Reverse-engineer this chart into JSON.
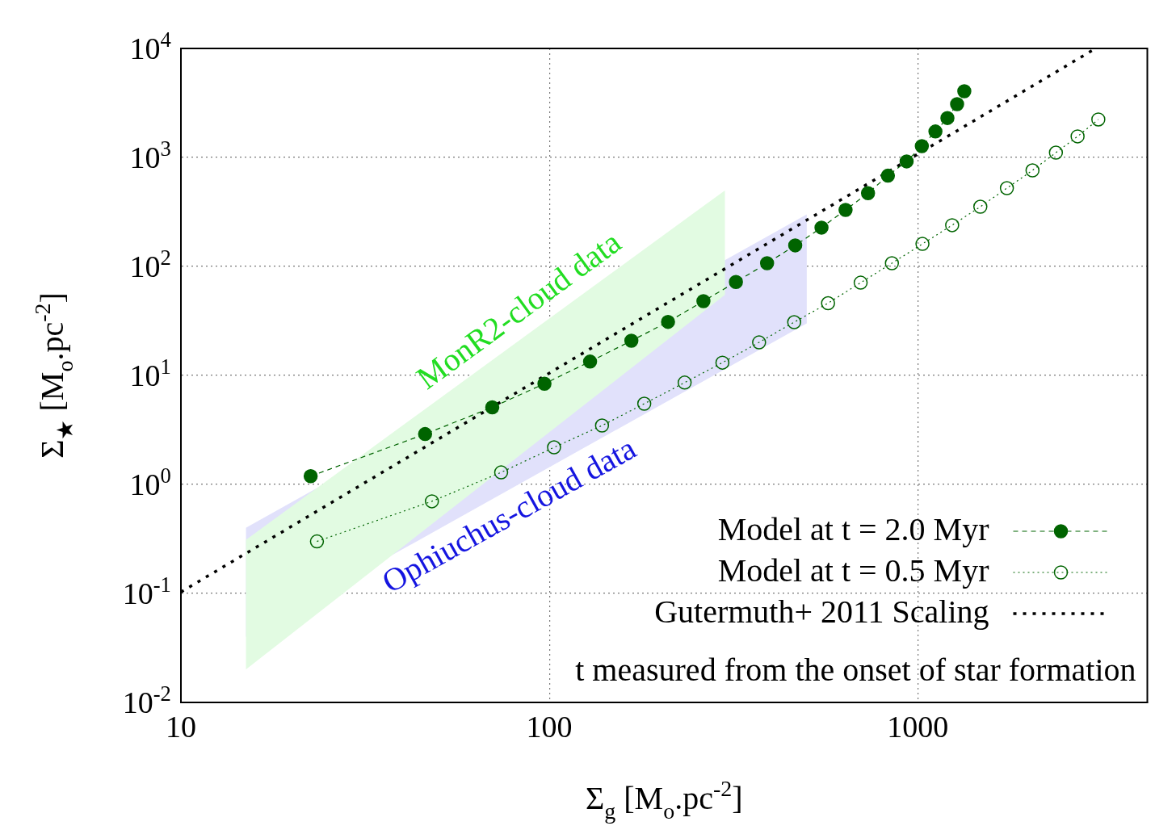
{
  "chart_data": {
    "type": "scatter",
    "xlabel": "Σ$_{g}$ [M$_{o}$.pc$^{-2}$]",
    "ylabel": "Σ$_{★}$ [M$_{o}$.pc$^{-2}$]",
    "log": "xy",
    "xlim": [
      10,
      4200
    ],
    "ylim": [
      0.01,
      10000
    ],
    "xticks": [
      10,
      100,
      1000
    ],
    "yticks": [
      {
        "value": 0.01,
        "label": "10$^{-2}$"
      },
      {
        "value": 0.1,
        "label": "10$^{-1}$"
      },
      {
        "value": 1,
        "label": "10$^{0}$"
      },
      {
        "value": 10,
        "label": "10$^{1}$"
      },
      {
        "value": 100,
        "label": "10$^{2}$"
      },
      {
        "value": 1000,
        "label": "10$^{3}$"
      },
      {
        "value": 10000,
        "label": "10$^{4}$"
      }
    ],
    "grid": true,
    "legend": "bottom right",
    "annotations": [
      "t measured from the onset of star formation"
    ],
    "series": [
      {
        "type": "line",
        "name": "MonR2-cloud data",
        "color": "#22dd22",
        "x": [
          15,
          300
        ],
        "values": [
          null,
          null
        ],
        "upper": [
          0.31,
          500
        ],
        "lower": [
          0.02,
          55
        ]
      },
      {
        "type": "line",
        "name": "Ophiuchus-cloud data",
        "color": "#1515e0",
        "x": [
          15,
          500
        ],
        "values": [
          null,
          null
        ],
        "upper": [
          0.4,
          300
        ],
        "lower": [
          0.04,
          30
        ]
      },
      {
        "type": "line",
        "name": "Model at t = 2.0 Myr",
        "color": "#006400",
        "marker": "circle",
        "line_style": "dashed",
        "x": [
          22.5,
          46,
          70,
          97,
          129,
          167,
          210,
          262,
          321,
          390,
          465,
          548,
          637,
          733,
          830,
          933,
          1026,
          1117,
          1204,
          1279,
          1338
        ],
        "values": [
          1.19,
          2.9,
          5.1,
          8.4,
          13.4,
          20.8,
          31,
          48,
          72,
          107,
          156,
          227,
          330,
          470,
          680,
          920,
          1270,
          1730,
          2300,
          3080,
          4050
        ]
      },
      {
        "type": "line",
        "name": "Model at t = 0.5 Myr",
        "color": "#006400",
        "marker": "circle-open",
        "line_style": "dotted",
        "x": [
          23.4,
          48,
          74,
          103,
          139,
          181,
          233,
          295,
          371,
          462,
          571,
          700,
          851,
          1030,
          1240,
          1479,
          1746,
          2049,
          2372,
          2716,
          3092
        ],
        "values": [
          0.3,
          0.7,
          1.29,
          2.19,
          3.47,
          5.5,
          8.6,
          13.1,
          20.1,
          30.8,
          46,
          71,
          107,
          161,
          239,
          353,
          523,
          761,
          1107,
          1560,
          2230
        ]
      },
      {
        "type": "line",
        "name": "Gutermuth+ 2011 Scaling",
        "color": "#000000",
        "marker": "none",
        "line_style": "dotted",
        "x": [
          10,
          3040
        ],
        "values": [
          0.103,
          10000
        ]
      }
    ]
  }
}
